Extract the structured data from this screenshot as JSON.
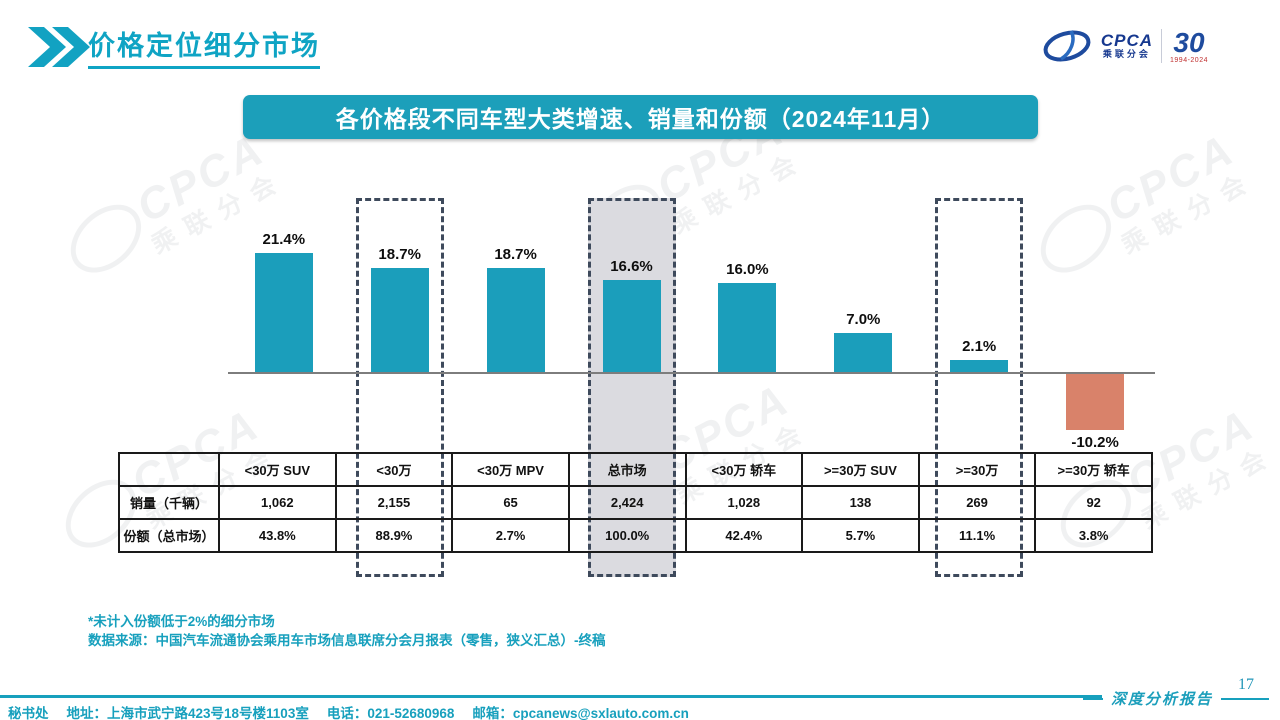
{
  "header": {
    "title": "价格定位细分市场"
  },
  "logo": {
    "name": "CPCA",
    "sub": "乘联分会",
    "anniversary": "30",
    "years": "1994-2024"
  },
  "banner": {
    "title": "各价格段不同车型大类增速、销量和份额（2024年11月）"
  },
  "chart_data": {
    "type": "bar",
    "title": "各价格段不同车型大类增速、销量和份额（2024年11月）",
    "categories": [
      "<30万 SUV",
      "<30万",
      "<30万 MPV",
      "总市场",
      "<30万 轿车",
      ">=30万 SUV",
      ">=30万",
      ">=30万 轿车"
    ],
    "series": [
      {
        "name": "增速",
        "unit": "%",
        "values": [
          21.4,
          18.7,
          18.7,
          16.6,
          16.0,
          7.0,
          2.1,
          -10.2
        ],
        "labels": [
          "21.4%",
          "18.7%",
          "18.7%",
          "16.6%",
          "16.0%",
          "7.0%",
          "2.1%",
          "-10.2%"
        ]
      },
      {
        "name": "销量（千辆）",
        "values": [
          1062,
          2155,
          65,
          2424,
          1028,
          138,
          269,
          92
        ]
      },
      {
        "name": "份额（总市场）",
        "unit": "%",
        "values": [
          43.8,
          88.9,
          2.7,
          100.0,
          42.4,
          5.7,
          11.1,
          3.8
        ]
      }
    ],
    "highlighted_columns": [
      1,
      3,
      6
    ],
    "shaded_column": 3,
    "bar_color_positive": "#1B9EBB",
    "bar_color_negative": "#D9826A",
    "baseline": 0,
    "grid": false,
    "legend": false
  },
  "table": {
    "corner": "",
    "row_headers": [
      "销量（千辆）",
      "份额（总市场）"
    ],
    "rows": [
      [
        "1,062",
        "2,155",
        "65",
        "2,424",
        "1,028",
        "138",
        "269",
        "92"
      ],
      [
        "43.8%",
        "88.9%",
        "2.7%",
        "100.0%",
        "42.4%",
        "5.7%",
        "11.1%",
        "3.8%"
      ]
    ]
  },
  "footnotes": [
    "*未计入份额低于2%的细分市场",
    "数据来源：中国汽车流通协会乘用车市场信息联席分会月报表（零售，狭义汇总）-终稿"
  ],
  "footer": {
    "page_number": "17",
    "report_label": "深度分析报告",
    "parts": [
      "秘书处",
      "地址：上海市武宁路423号18号楼1103室",
      "电话：021-52680968",
      "邮箱：cpcanews@sxlauto.com.cn"
    ]
  },
  "watermark": {
    "cpca": "CPCA",
    "sub": "乘联分会"
  }
}
